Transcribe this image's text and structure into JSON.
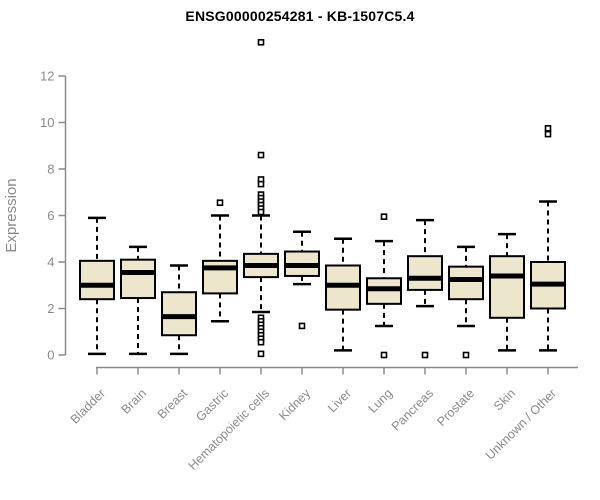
{
  "page": {
    "background": "#ffffff"
  },
  "chart_data": {
    "type": "boxplot",
    "title": "ENSG00000254281 - KB-1507C5.4",
    "xlabel": "",
    "ylabel": "Expression",
    "ylim": [
      0,
      13.5
    ],
    "yticks": [
      0,
      2,
      4,
      6,
      8,
      10,
      12
    ],
    "grid": false,
    "legend": "none",
    "box_fill": "#ECE6CC",
    "box_border": "#000000",
    "median_color": "#000000",
    "axis_color": "#8a8a8a",
    "label_color": "#8a8a8a",
    "title_color": "#000000",
    "categories": [
      "Bladder",
      "Brain",
      "Breast",
      "Gastric",
      "Hematopoietic cells",
      "Kidney",
      "Liver",
      "Lung",
      "Pancreas",
      "Prostate",
      "Skin",
      "Unknown / Other"
    ],
    "series": [
      {
        "name": "Bladder",
        "whisker_low": 0.05,
        "q1": 2.4,
        "median": 3.0,
        "q3": 4.05,
        "whisker_high": 5.9,
        "outliers": []
      },
      {
        "name": "Brain",
        "whisker_low": 0.05,
        "q1": 2.45,
        "median": 3.55,
        "q3": 4.1,
        "whisker_high": 4.65,
        "outliers": []
      },
      {
        "name": "Breast",
        "whisker_low": 0.05,
        "q1": 0.85,
        "median": 1.65,
        "q3": 2.7,
        "whisker_high": 3.85,
        "outliers": []
      },
      {
        "name": "Gastric",
        "whisker_low": 1.45,
        "q1": 2.65,
        "median": 3.75,
        "q3": 4.05,
        "whisker_high": 6.0,
        "outliers": [
          6.55
        ]
      },
      {
        "name": "Hematopoietic cells",
        "whisker_low": 1.85,
        "q1": 3.35,
        "median": 3.85,
        "q3": 4.35,
        "whisker_high": 6.0,
        "outliers": [
          13.45,
          8.6,
          7.55,
          7.35,
          6.9,
          6.75,
          6.6,
          6.45,
          6.3,
          6.15,
          1.6,
          1.45,
          1.3,
          1.15,
          1.0,
          0.85,
          0.7,
          0.55,
          0.05
        ]
      },
      {
        "name": "Kidney",
        "whisker_low": 3.05,
        "q1": 3.4,
        "median": 3.85,
        "q3": 4.45,
        "whisker_high": 5.3,
        "outliers": [
          1.25
        ]
      },
      {
        "name": "Liver",
        "whisker_low": 0.2,
        "q1": 1.95,
        "median": 3.0,
        "q3": 3.85,
        "whisker_high": 5.0,
        "outliers": []
      },
      {
        "name": "Lung",
        "whisker_low": 1.25,
        "q1": 2.2,
        "median": 2.85,
        "q3": 3.3,
        "whisker_high": 4.9,
        "outliers": [
          5.95,
          0.0
        ]
      },
      {
        "name": "Pancreas",
        "whisker_low": 2.1,
        "q1": 2.8,
        "median": 3.3,
        "q3": 4.25,
        "whisker_high": 5.8,
        "outliers": [
          0.0
        ]
      },
      {
        "name": "Prostate",
        "whisker_low": 1.25,
        "q1": 2.4,
        "median": 3.25,
        "q3": 3.8,
        "whisker_high": 4.65,
        "outliers": [
          0.0
        ]
      },
      {
        "name": "Skin",
        "whisker_low": 0.2,
        "q1": 1.6,
        "median": 3.4,
        "q3": 4.25,
        "whisker_high": 5.2,
        "outliers": []
      },
      {
        "name": "Unknown / Other",
        "whisker_low": 0.2,
        "q1": 2.0,
        "median": 3.05,
        "q3": 4.0,
        "whisker_high": 6.6,
        "outliers": [
          9.75,
          9.5
        ]
      }
    ]
  }
}
